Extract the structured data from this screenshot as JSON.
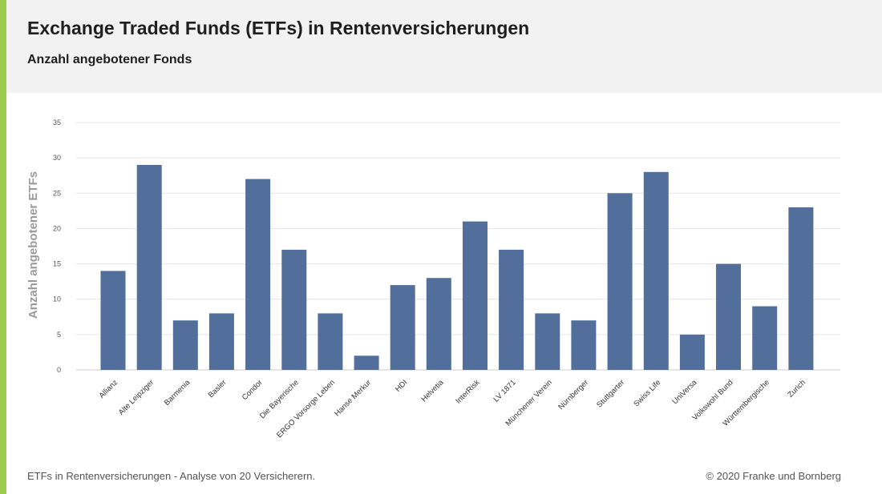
{
  "header": {
    "title": "Exchange Traded Funds (ETFs) in Rentenversicherungen",
    "subtitle": "Anzahl angebotener Fonds"
  },
  "footer": {
    "left": "ETFs in Rentenversicherungen - Analyse von 20 Versicherern.",
    "right": "© 2020 Franke und Bornberg"
  },
  "colors": {
    "bar": "#526f9b",
    "accent": "#9ccb4e",
    "header_bg": "#f2f2f2",
    "grid": "#e6e6e6"
  },
  "chart_data": {
    "type": "bar",
    "title": "Exchange Traded Funds (ETFs) in Rentenversicherungen",
    "subtitle": "Anzahl angebotener Fonds",
    "xlabel": "",
    "ylabel": "Anzahl angebotener ETFs",
    "ylim": [
      0,
      35
    ],
    "yticks": [
      0,
      5,
      10,
      15,
      20,
      25,
      30,
      35
    ],
    "grid": true,
    "categories": [
      "Allianz",
      "Alte Leipziger",
      "Barmenia",
      "Basler",
      "Condor",
      "Die Bayerische",
      "ERGO Vorsorge Leben",
      "Hanse Merkur",
      "HDI",
      "Helvetia",
      "InterRisk",
      "LV 1871",
      "Münchener Verein",
      "Nürnberger",
      "Stuttgarter",
      "Swiss Life",
      "UniVersa",
      "Volkswohl Bund",
      "Württembergische",
      "Zurich"
    ],
    "values": [
      14,
      29,
      7,
      8,
      27,
      17,
      8,
      2,
      12,
      13,
      21,
      17,
      8,
      7,
      25,
      28,
      5,
      15,
      9,
      23
    ]
  }
}
